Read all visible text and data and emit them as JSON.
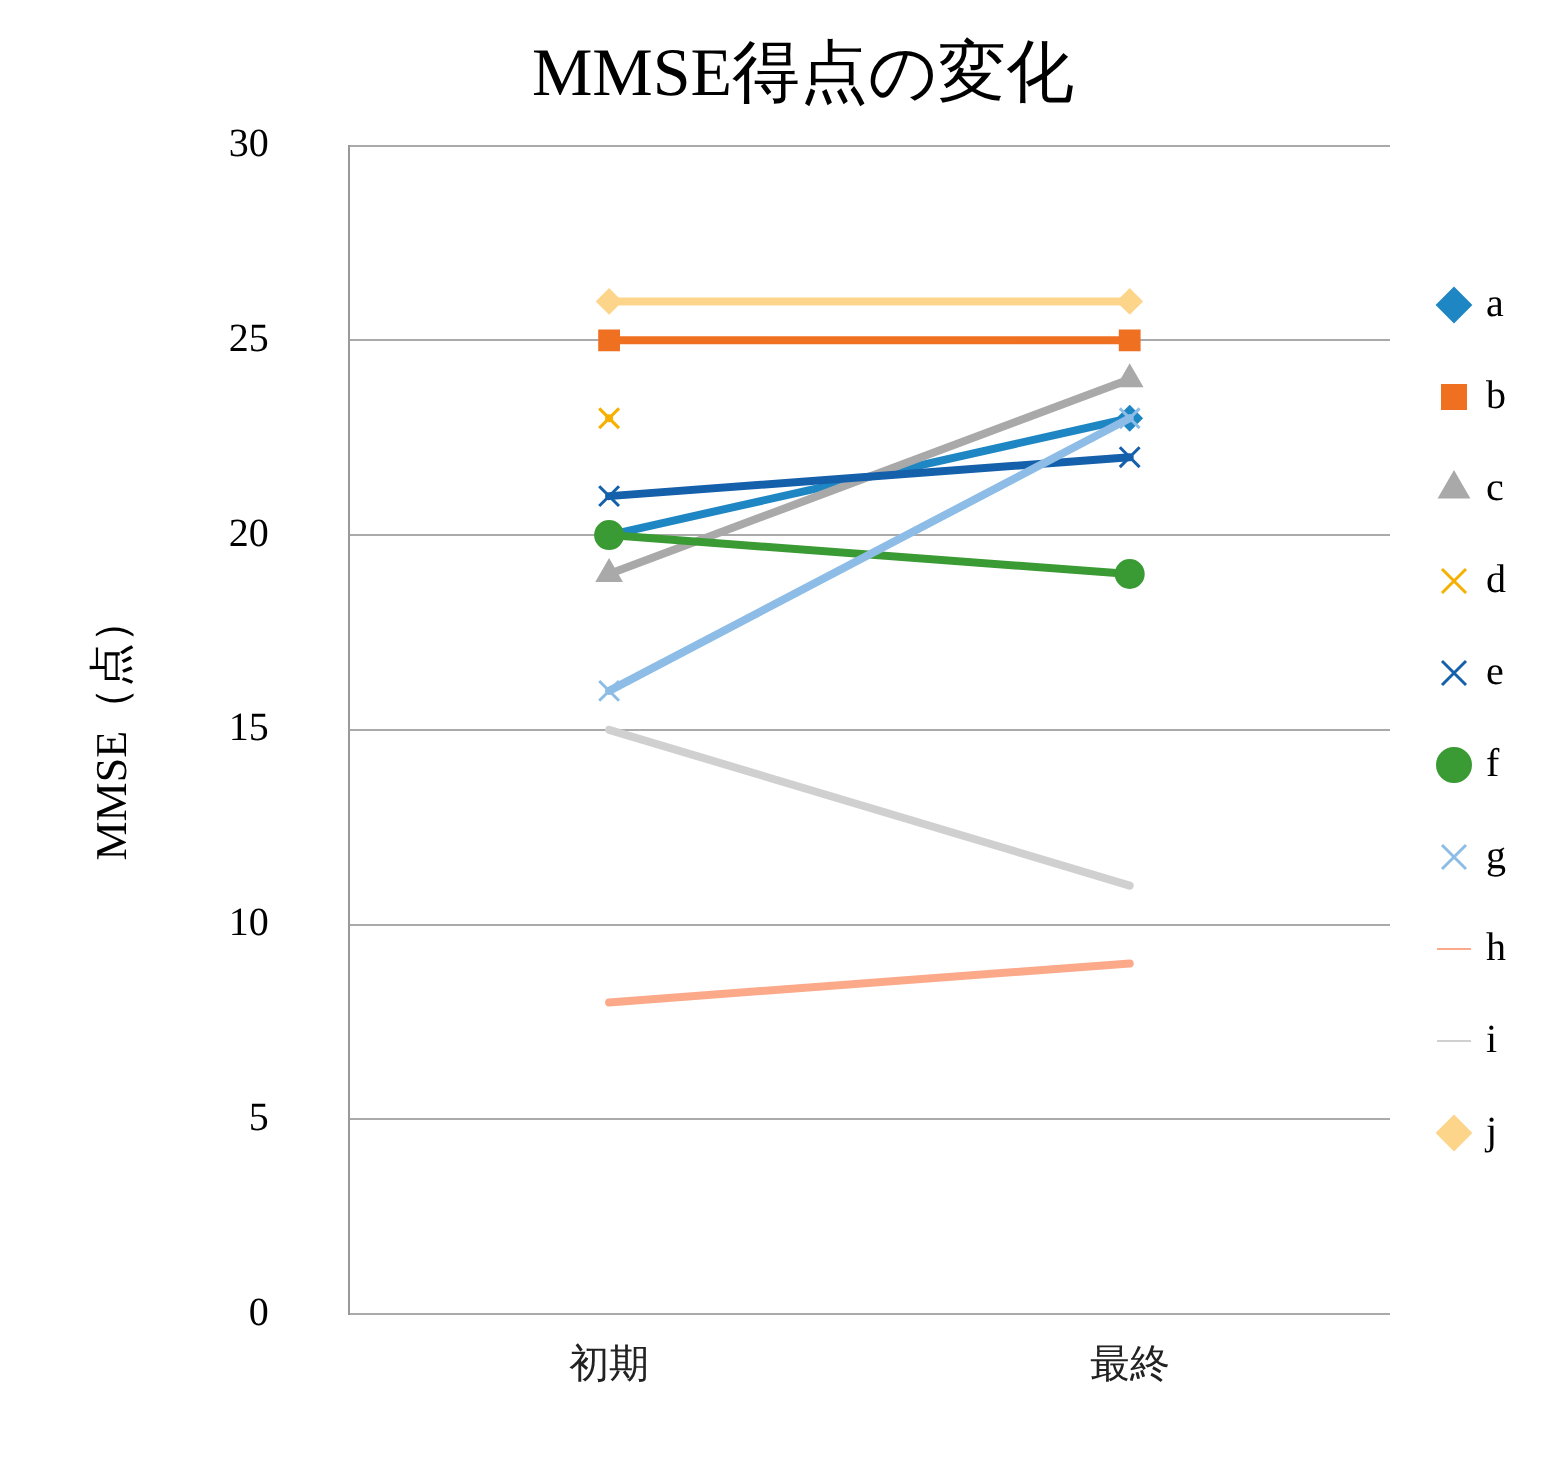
{
  "chart_data": {
    "type": "line",
    "title": "MMSE得点の変化",
    "ylabel": "MMSE（点）",
    "categories": [
      "初期",
      "最終"
    ],
    "ylim": [
      0,
      30
    ],
    "yticks": [
      0,
      5,
      10,
      15,
      20,
      25,
      30
    ],
    "grid": "y",
    "legend": "right",
    "series": [
      {
        "name": "a",
        "color": "#1f86c4",
        "values": [
          20,
          23
        ],
        "marker": "diamond"
      },
      {
        "name": "b",
        "color": "#f07022",
        "values": [
          25,
          25
        ],
        "marker": "square"
      },
      {
        "name": "c",
        "color": "#a9a9a9",
        "values": [
          19,
          24
        ],
        "marker": "triangle"
      },
      {
        "name": "d",
        "color": "#f5b000",
        "values": [
          23,
          null
        ],
        "marker": "cross"
      },
      {
        "name": "e",
        "color": "#1560ab",
        "values": [
          21,
          22
        ],
        "marker": "cross"
      },
      {
        "name": "f",
        "color": "#3a9a33",
        "values": [
          20,
          19
        ],
        "marker": "circle"
      },
      {
        "name": "g",
        "color": "#8dbde6",
        "values": [
          16,
          23
        ],
        "marker": "cross"
      },
      {
        "name": "h",
        "color": "#fca98a",
        "values": [
          8,
          9
        ],
        "marker": "none"
      },
      {
        "name": "i",
        "color": "#d0d0d0",
        "values": [
          15,
          11
        ],
        "marker": "none"
      },
      {
        "name": "j",
        "color": "#fdd58a",
        "values": [
          26,
          26
        ],
        "marker": "diamond"
      }
    ]
  }
}
